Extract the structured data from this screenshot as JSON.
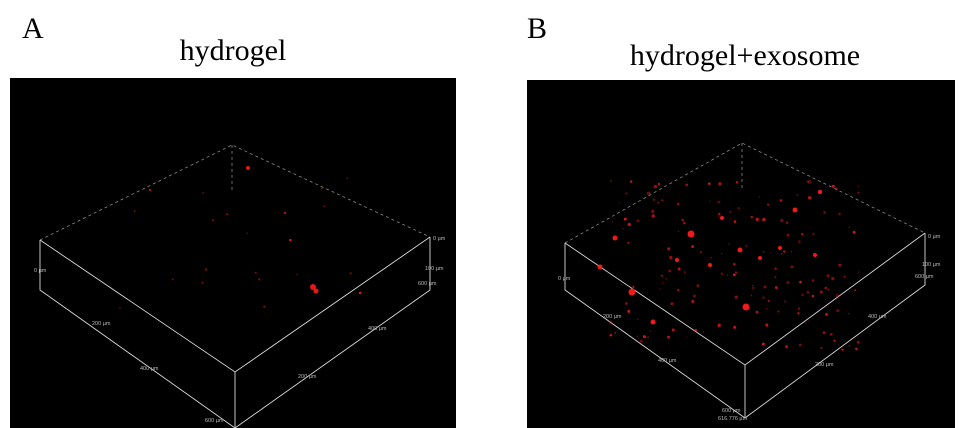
{
  "panels": [
    {
      "letter": "A",
      "title": "hydrogel",
      "axis_labels": [
        "0 µm",
        "200 µm",
        "400 µm",
        "600 µm",
        "0 µm",
        "100 µm",
        "600 µm",
        "400 µm",
        "200 µm"
      ]
    },
    {
      "letter": "B",
      "title": "hydrogel+exosome",
      "axis_labels": [
        "0 µm",
        "200 µm",
        "400 µm",
        "600 µm",
        "616.776 µm",
        "0 µm",
        "100 µm",
        "600 µm",
        "400 µm",
        "200 µm"
      ]
    }
  ]
}
